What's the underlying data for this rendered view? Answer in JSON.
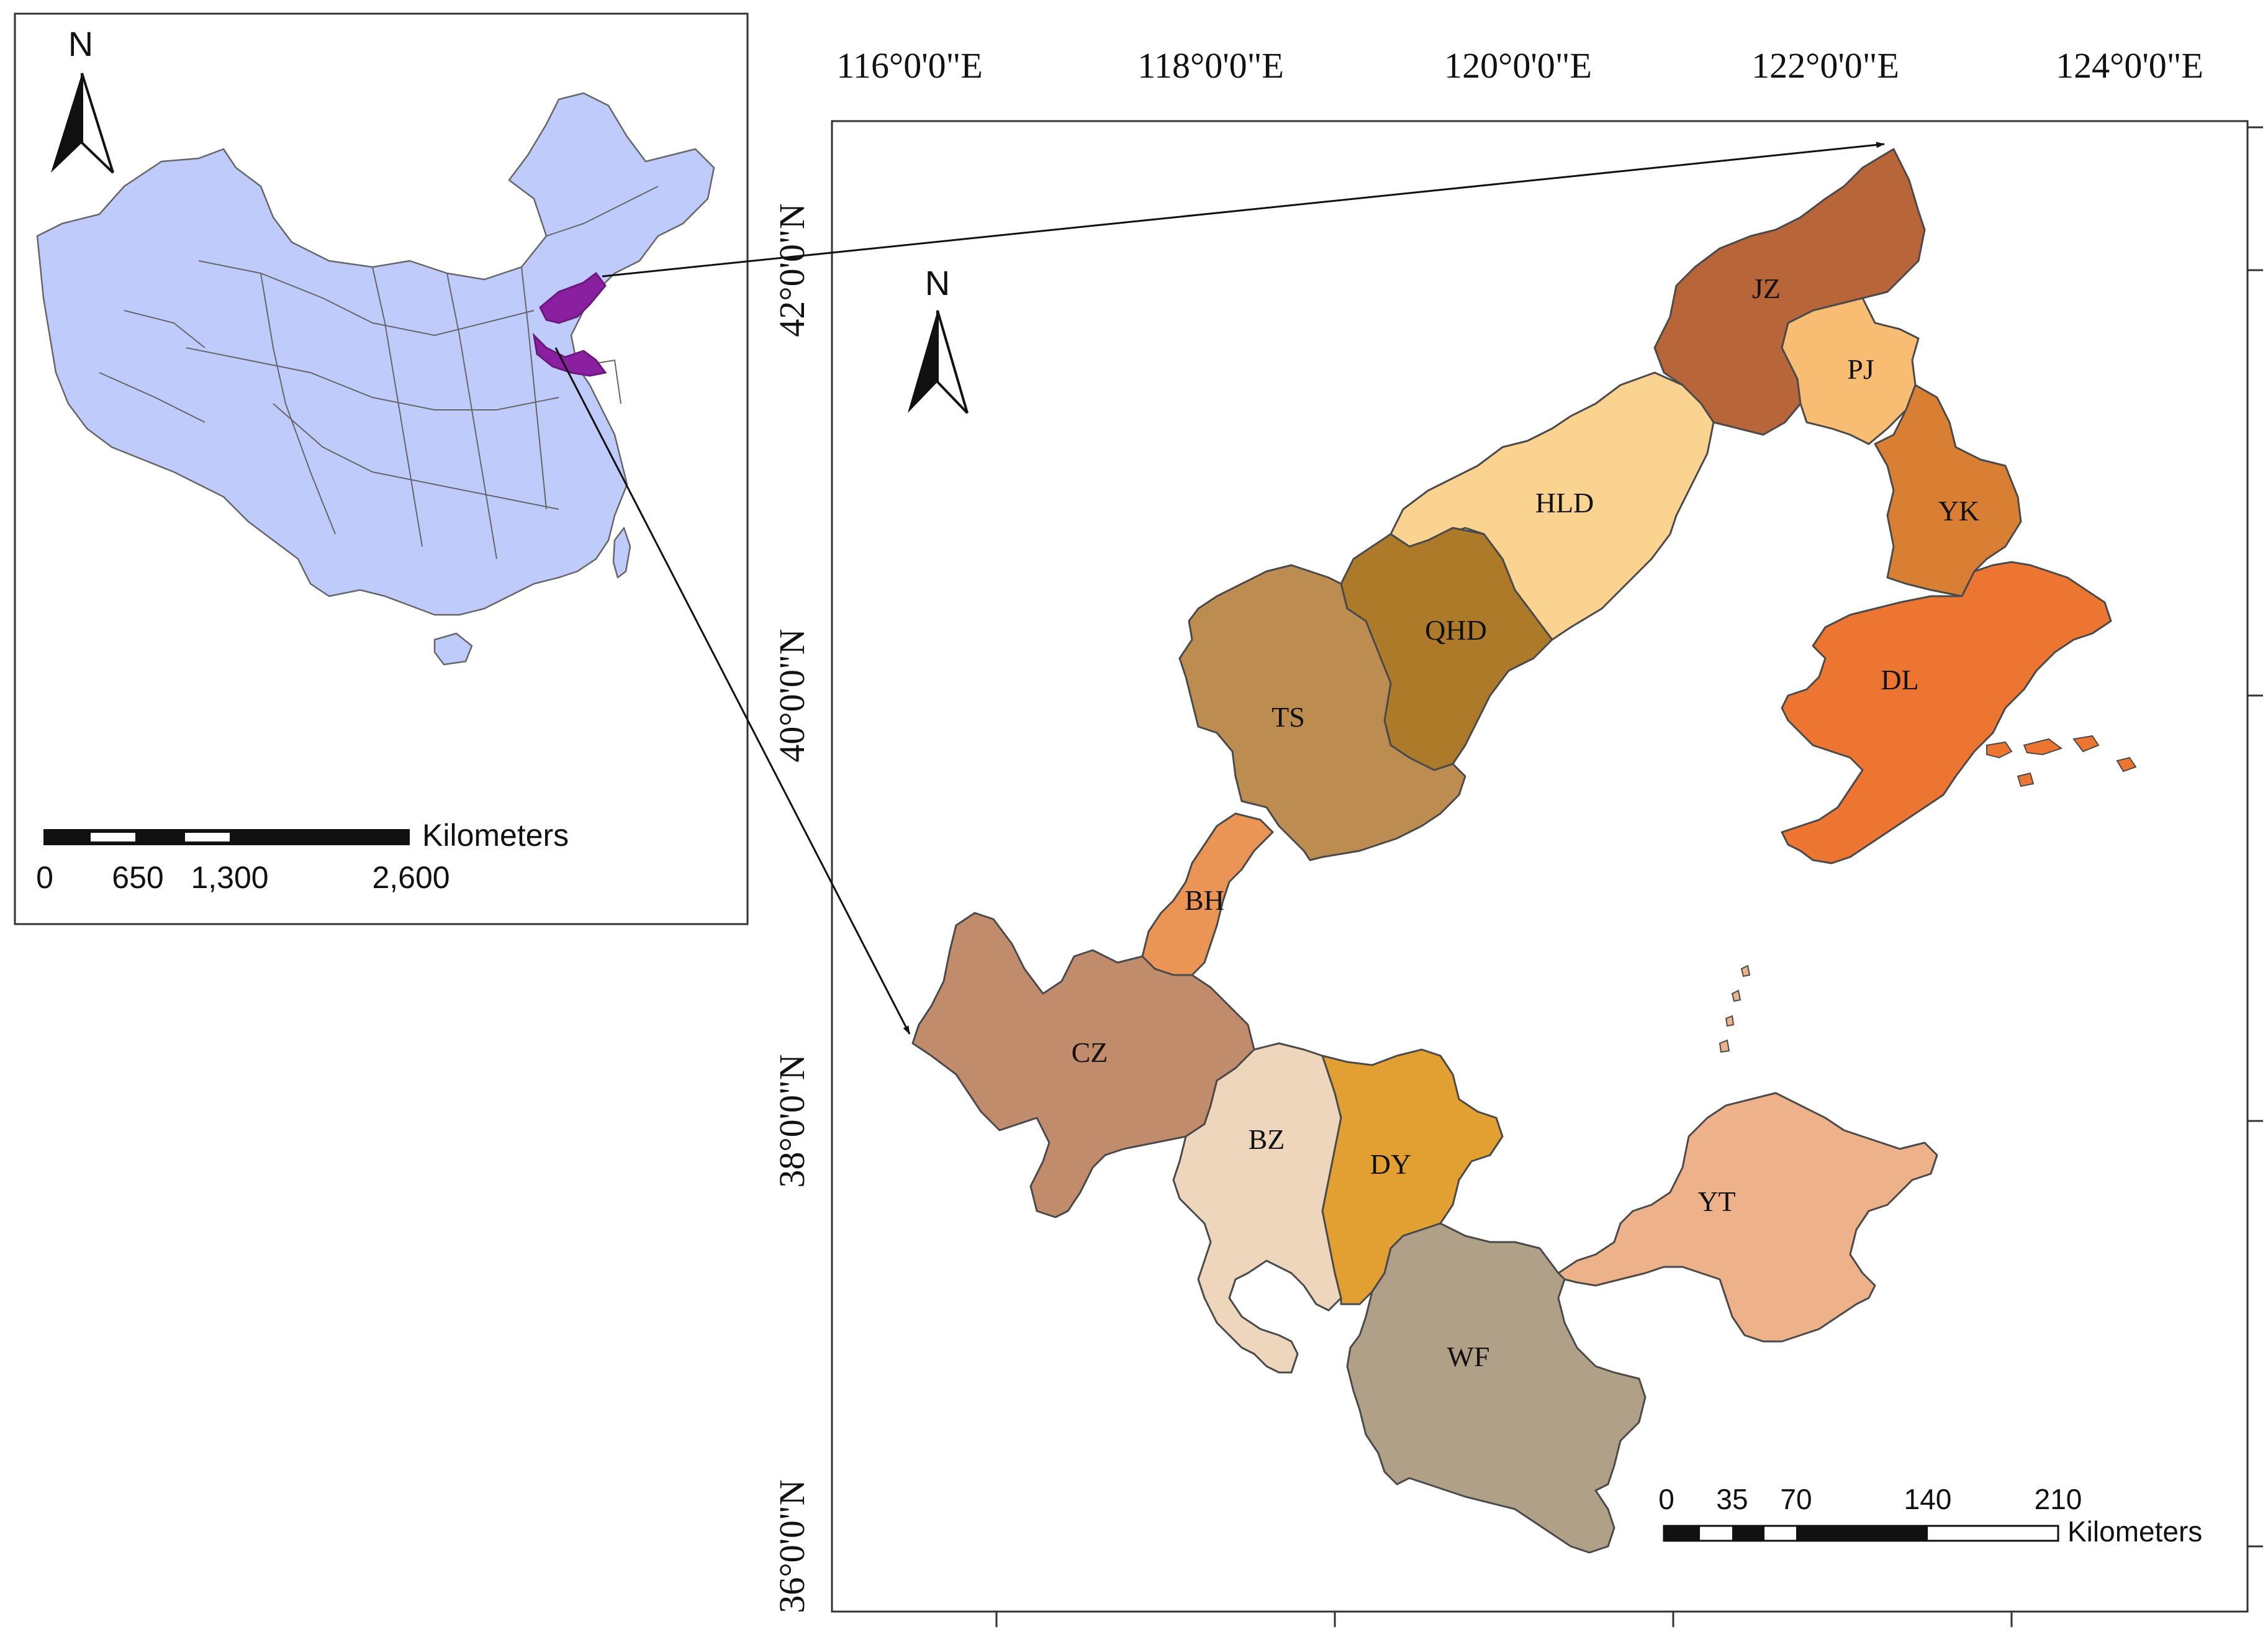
{
  "inset": {
    "north_label": "N",
    "scale_unit": "Kilometers",
    "scale_ticks": [
      "0",
      "650",
      "1,300",
      "2,600"
    ]
  },
  "main": {
    "north_label": "N",
    "lon_ticks": [
      "116°0'0\"E",
      "118°0'0\"E",
      "120°0'0\"E",
      "122°0'0\"E",
      "124°0'0\"E"
    ],
    "lat_ticks": [
      "42°0'0\"N",
      "40°0'0\"N",
      "38°0'0\"N",
      "36°0'0\"N"
    ],
    "scale_unit": "Kilometers",
    "scale_ticks": [
      "0",
      "35",
      "70",
      "140",
      "210"
    ],
    "regions": [
      {
        "id": "JZ",
        "label": "JZ",
        "color": "#b9653a"
      },
      {
        "id": "PJ",
        "label": "PJ",
        "color": "#f8bd72"
      },
      {
        "id": "HLD",
        "label": "HLD",
        "color": "#f9d38f"
      },
      {
        "id": "YK",
        "label": "YK",
        "color": "#d97f33"
      },
      {
        "id": "QHD",
        "label": "QHD",
        "color": "#ad7a2a"
      },
      {
        "id": "DL",
        "label": "DL",
        "color": "#ec7532"
      },
      {
        "id": "TS",
        "label": "TS",
        "color": "#bc8c51"
      },
      {
        "id": "BH",
        "label": "BH",
        "color": "#ea9556"
      },
      {
        "id": "CZ",
        "label": "CZ",
        "color": "#c18c6c"
      },
      {
        "id": "BZ",
        "label": "BZ",
        "color": "#eed6bc"
      },
      {
        "id": "DY",
        "label": "DY",
        "color": "#e3a032"
      },
      {
        "id": "YT",
        "label": "YT",
        "color": "#edb28a"
      },
      {
        "id": "WF",
        "label": "WF",
        "color": "#b1a088"
      }
    ]
  }
}
